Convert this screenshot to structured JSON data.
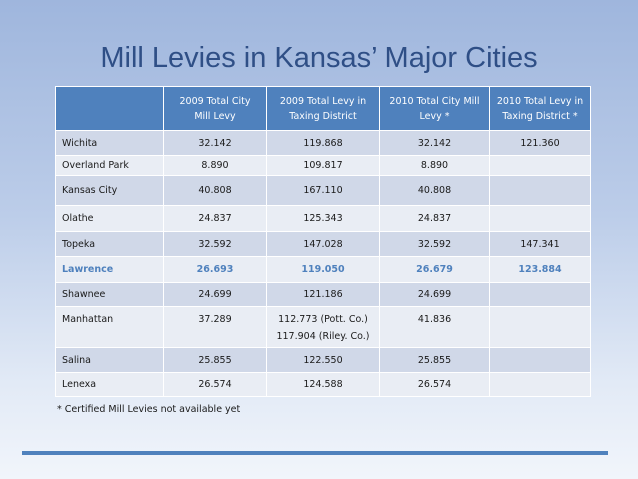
{
  "title": "Mill Levies in Kansas’ Major Cities",
  "table": {
    "headers": [
      "",
      "2009 Total City Mill Levy",
      "2009 Total Levy in Taxing District",
      "2010 Total City Mill Levy *",
      "2010 Total Levy in Taxing District *"
    ],
    "rows": [
      {
        "city": "Wichita",
        "c2009": "32.142",
        "d2009": "119.868",
        "c2010": "32.142",
        "d2010": "121.360"
      },
      {
        "city": "Overland Park",
        "c2009": "8.890",
        "d2009": "109.817",
        "c2010": "8.890",
        "d2010": ""
      },
      {
        "city": "Kansas City",
        "c2009": "40.808",
        "d2009": "167.110",
        "c2010": "40.808",
        "d2010": ""
      },
      {
        "city": "Olathe",
        "c2009": "24.837",
        "d2009": "125.343",
        "c2010": "24.837",
        "d2010": ""
      },
      {
        "city": "Topeka",
        "c2009": "32.592",
        "d2009": "147.028",
        "c2010": "32.592",
        "d2010": "147.341"
      },
      {
        "city": "Lawrence",
        "c2009": "26.693",
        "d2009": "119.050",
        "c2010": "26.679",
        "d2010": "123.884"
      },
      {
        "city": "Shawnee",
        "c2009": "24.699",
        "d2009": "121.186",
        "c2010": "24.699",
        "d2010": ""
      },
      {
        "city": "Manhattan",
        "c2009": "37.289",
        "d2009": "112.773 (Pott. Co.)",
        "d2009b": "117.904 (Riley. Co.)",
        "c2010": "41.836",
        "d2010": ""
      },
      {
        "city": "Salina",
        "c2009": "25.855",
        "d2009": "122.550",
        "c2010": "25.855",
        "d2010": ""
      },
      {
        "city": "Lenexa",
        "c2009": "26.574",
        "d2009": "124.588",
        "c2010": "26.574",
        "d2010": ""
      }
    ]
  },
  "footnote": "* Certified Mill Levies not available yet",
  "colors": {
    "header": "#4f81bd",
    "row_dark": "#d0d8e8",
    "row_light": "#e9edf4",
    "highlight": "#4f81bd",
    "title": "#2f4f86"
  }
}
